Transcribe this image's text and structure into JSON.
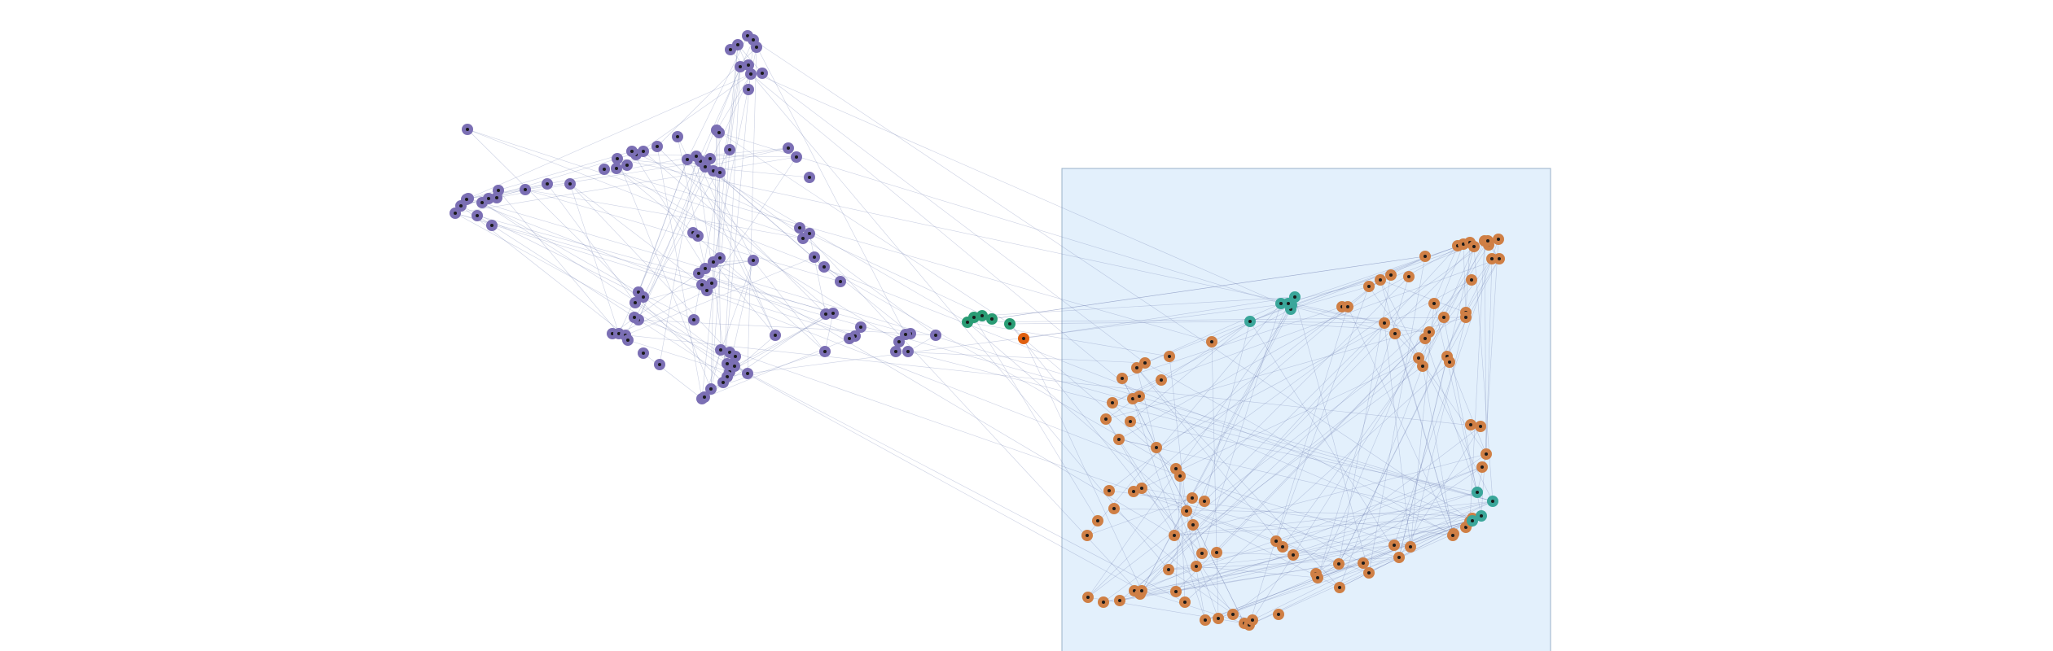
{
  "graph": {
    "colors": {
      "purple": "#7b6fb4",
      "orange": "#cf7f45",
      "teal": "#3aa69a",
      "green": "#2a9c74",
      "red": "#e06010",
      "core": "#1a1a1a",
      "edge": "#6c7ab0",
      "highlight_fill": "#e3f0fc",
      "highlight_stroke": "#9ab0c8"
    },
    "clusters": [
      {
        "name": "purple-cluster",
        "color_key": "purple",
        "node_count": 92
      },
      {
        "name": "orange-cluster",
        "color_key": "orange",
        "node_count": 96
      },
      {
        "name": "teal-cluster",
        "color_key": "teal",
        "node_count": 10
      },
      {
        "name": "green-cluster",
        "color_key": "green",
        "node_count": 5
      },
      {
        "name": "red-node",
        "color_key": "red",
        "node_count": 1
      }
    ],
    "highlight_box": true,
    "edge_style": "thin gray lines connecting nodes"
  }
}
